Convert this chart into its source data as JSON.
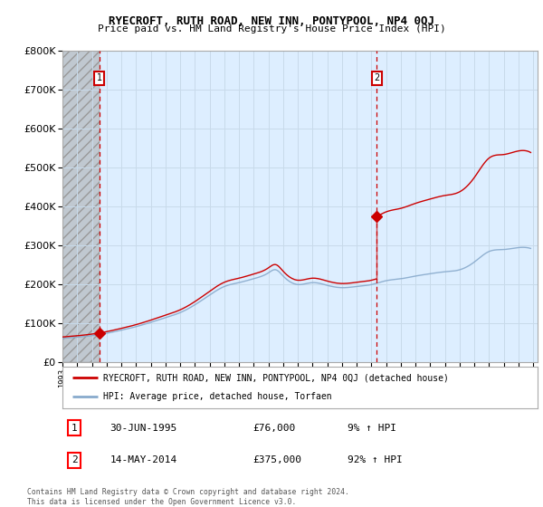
{
  "title": "RYECROFT, RUTH ROAD, NEW INN, PONTYPOOL, NP4 0QJ",
  "subtitle": "Price paid vs. HM Land Registry's House Price Index (HPI)",
  "ylim": [
    0,
    800000
  ],
  "yticks": [
    0,
    100000,
    200000,
    300000,
    400000,
    500000,
    600000,
    700000,
    800000
  ],
  "xmin": 1993.0,
  "xmax": 2025.3,
  "sale1_x": 1995.5,
  "sale1_y": 76000,
  "sale1_date": "30-JUN-1995",
  "sale1_price": "£76,000",
  "sale1_hpi": "9% ↑ HPI",
  "sale2_x": 2014.37,
  "sale2_y": 375000,
  "sale2_date": "14-MAY-2014",
  "sale2_price": "£375,000",
  "sale2_hpi": "92% ↑ HPI",
  "hatch_xmax": 1995.5,
  "red_line_color": "#cc0000",
  "blue_line_color": "#88aacc",
  "grid_color": "#c8daea",
  "plot_bg_color": "#ddeeff",
  "legend_line1": "RYECROFT, RUTH ROAD, NEW INN, PONTYPOOL, NP4 0QJ (detached house)",
  "legend_line2": "HPI: Average price, detached house, Torfaen",
  "footer": "Contains HM Land Registry data © Crown copyright and database right 2024.\nThis data is licensed under the Open Government Licence v3.0."
}
